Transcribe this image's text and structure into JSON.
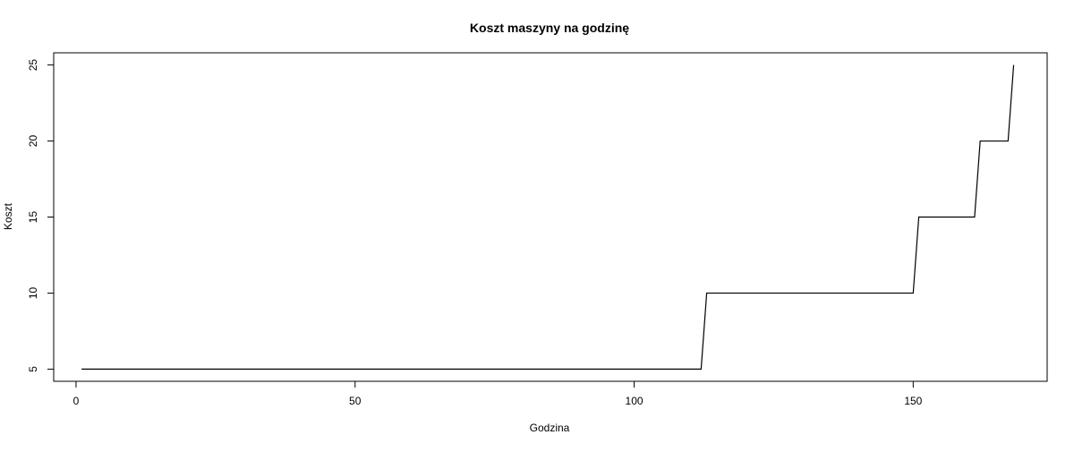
{
  "chart_data": {
    "type": "line",
    "title": "Koszt maszyny na godzinę",
    "xlabel": "Godzina",
    "ylabel": "Koszt",
    "xlim": [
      -4,
      174
    ],
    "ylim": [
      4.2,
      25.8
    ],
    "x_ticks": [
      0,
      50,
      100,
      150
    ],
    "y_ticks": [
      5,
      10,
      15,
      20,
      25
    ],
    "grid": false,
    "legend": "none",
    "line_color": "#000000",
    "series": [
      {
        "x": [
          1,
          112,
          113,
          150,
          151,
          161,
          162,
          167,
          168
        ],
        "y": [
          5,
          5,
          10,
          10,
          15,
          15,
          20,
          20,
          25
        ]
      }
    ]
  }
}
